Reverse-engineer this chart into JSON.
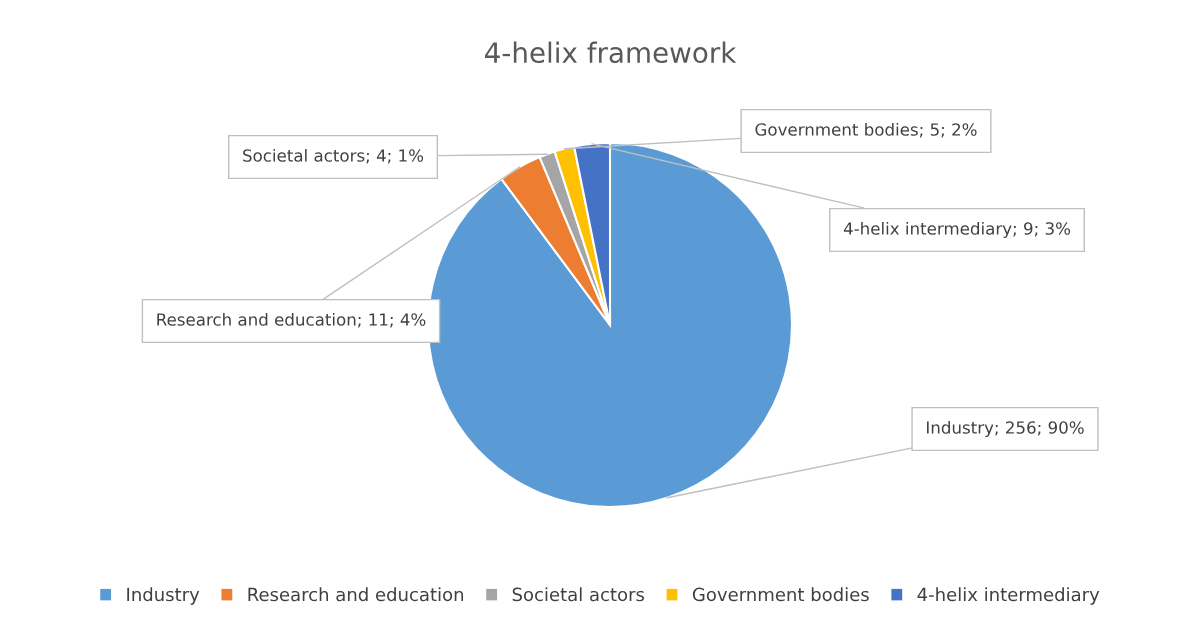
{
  "chart_data": {
    "type": "pie",
    "title": "4-helix framework",
    "categories": [
      "Industry",
      "Research and education",
      "Societal actors",
      "Government bodies",
      "4-helix intermediary"
    ],
    "values": [
      256,
      11,
      4,
      5,
      9
    ],
    "colors": [
      "#5b9bd5",
      "#ed7d31",
      "#a5a5a5",
      "#ffc000",
      "#4472c4"
    ],
    "value_labels": [
      "Industry; 256; 90%",
      "Research and education; 11; 4%",
      "Societal actors; 4; 1%",
      "Government bodies; 5; 2%",
      "4-helix intermediary; 9; 3%"
    ],
    "legend": "bottom"
  }
}
